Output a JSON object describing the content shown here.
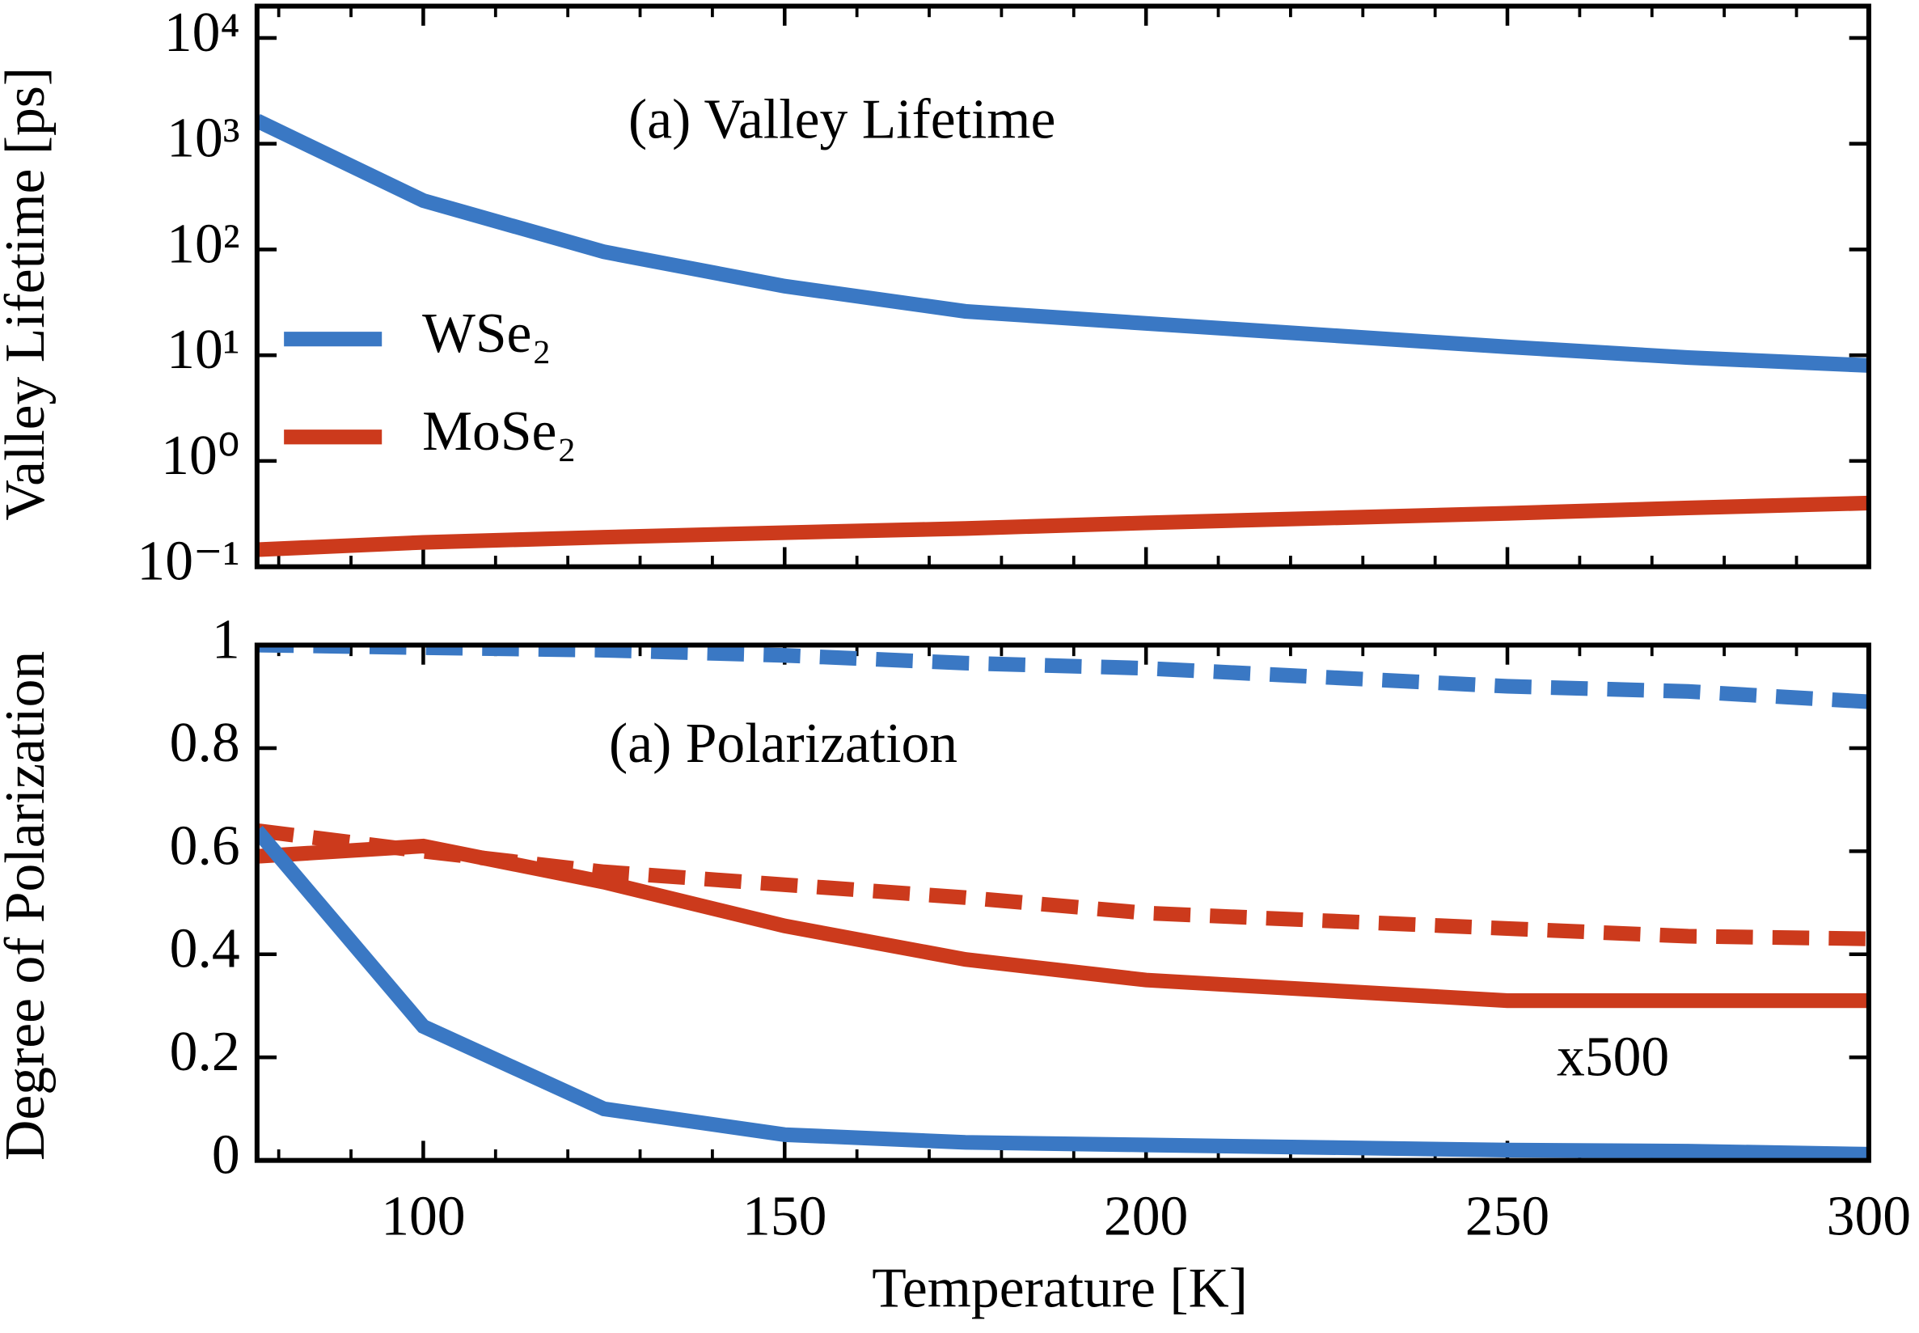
{
  "chart_data": [
    {
      "type": "line",
      "log_y": true,
      "show_xtick_labels": false,
      "legend": "center-left",
      "ylabel": "Valley Lifetime [ps]",
      "annotations": [
        "(a) Valley Lifetime"
      ],
      "x": [
        77,
        100,
        125,
        150,
        175,
        200,
        250,
        275,
        300
      ],
      "xlim": [
        77,
        300
      ],
      "xticks": [
        100,
        150,
        200,
        250,
        300
      ],
      "ylim": [
        0.1,
        20000
      ],
      "yticks": [
        {
          "value": 0.1,
          "label": "10⁻¹"
        },
        {
          "value": 1,
          "label": "10⁰"
        },
        {
          "value": 10,
          "label": "10¹"
        },
        {
          "value": 100,
          "label": "10²"
        },
        {
          "value": 1000,
          "label": "10³"
        },
        {
          "value": 10000,
          "label": "10⁴"
        }
      ],
      "series": [
        {
          "name": "WSe₂",
          "color": "#3a78c4",
          "dashed": false,
          "values": [
            1650,
            290,
            95,
            45,
            26,
            20,
            12,
            9.5,
            8
          ]
        },
        {
          "name": "MoSe₂",
          "color": "#cc3a1c",
          "dashed": false,
          "values": [
            0.145,
            0.17,
            0.19,
            0.21,
            0.23,
            0.26,
            0.32,
            0.36,
            0.4
          ]
        }
      ]
    },
    {
      "type": "line",
      "log_y": false,
      "show_xtick_labels": true,
      "ylabel": "Degree of Polarization",
      "xlabel": "Temperature [K]",
      "annotations": [
        "(a) Polarization",
        "x500"
      ],
      "x": [
        77,
        100,
        125,
        150,
        175,
        200,
        250,
        275,
        300
      ],
      "xlim": [
        77,
        300
      ],
      "xticks": [
        100,
        150,
        200,
        250,
        300
      ],
      "ylim": [
        0,
        1
      ],
      "yticks": [
        0,
        0.2,
        0.4,
        0.6,
        0.8,
        1
      ],
      "series": [
        {
          "color": "#3a78c4",
          "dashed": true,
          "values": [
            1.0,
            0.995,
            0.99,
            0.98,
            0.965,
            0.955,
            0.92,
            0.91,
            0.89
          ]
        },
        {
          "color": "#cc3a1c",
          "dashed": true,
          "values": [
            0.64,
            0.6,
            0.56,
            0.535,
            0.51,
            0.48,
            0.45,
            0.435,
            0.43
          ]
        },
        {
          "color": "#cc3a1c",
          "dashed": false,
          "values": [
            0.59,
            0.61,
            0.54,
            0.455,
            0.39,
            0.35,
            0.31,
            0.31,
            0.31
          ]
        },
        {
          "color": "#3a78c4",
          "dashed": false,
          "values": [
            0.64,
            0.26,
            0.1,
            0.05,
            0.035,
            0.03,
            0.02,
            0.018,
            0.012
          ]
        }
      ]
    }
  ]
}
